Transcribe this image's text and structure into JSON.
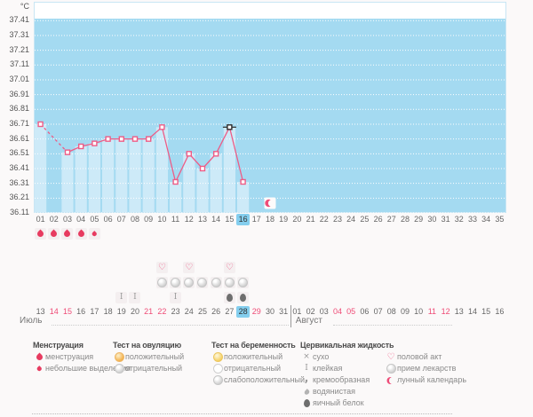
{
  "chart_data": {
    "type": "line",
    "ylabel": "°C",
    "y_ticks": [
      "37.41",
      "37.31",
      "37.21",
      "37.11",
      "37.01",
      "36.91",
      "36.81",
      "36.71",
      "36.61",
      "36.51",
      "36.41",
      "36.31",
      "36.21",
      "36.11"
    ],
    "ylim": [
      36.11,
      37.41
    ],
    "grid": "white-dotted",
    "x_days": [
      "01",
      "02",
      "03",
      "04",
      "05",
      "06",
      "07",
      "08",
      "09",
      "10",
      "11",
      "12",
      "13",
      "14",
      "15",
      "16",
      "17",
      "18",
      "19",
      "20",
      "21",
      "22",
      "23",
      "24",
      "25",
      "26",
      "27",
      "28",
      "29",
      "30",
      "31",
      "32",
      "33",
      "34",
      "35"
    ],
    "series": [
      {
        "name": "basal-temperature",
        "values": [
          36.71,
          null,
          36.52,
          36.56,
          36.58,
          36.61,
          36.61,
          36.61,
          36.61,
          36.69,
          36.32,
          36.51,
          36.41,
          36.51,
          36.69,
          36.32,
          null,
          null,
          null,
          null,
          null,
          null,
          null,
          null,
          null,
          null,
          null,
          null,
          null,
          null,
          null,
          null,
          null,
          null,
          null
        ]
      }
    ],
    "dashed_gap_between_days": [
      1,
      3
    ],
    "special_black_marker_day": 15,
    "selected_cycle_day": "16",
    "moon_icon_day": 18
  },
  "day_rows": {
    "menstruation_heavy_days": [
      1,
      2,
      3,
      4
    ],
    "menstruation_light_days": [
      5
    ],
    "intercourse_days": [
      10,
      12,
      15
    ],
    "ovulation_test_negative_days": [
      10,
      11,
      12,
      13,
      14,
      15,
      16
    ],
    "cervical_sticky_days": [
      7,
      8,
      11
    ],
    "cervical_eggwhite_days": [
      15,
      16
    ]
  },
  "calendar": {
    "months": [
      {
        "label": "Июль",
        "dates": [
          "13",
          "14",
          "15",
          "16",
          "17",
          "18",
          "19",
          "20",
          "21",
          "22",
          "23",
          "24",
          "25",
          "26",
          "27",
          "28",
          "29",
          "30",
          "31"
        ],
        "red_dates": [
          "14",
          "15",
          "21",
          "22",
          "29"
        ],
        "selected_date": "28"
      },
      {
        "label": "Август",
        "dates": [
          "01",
          "02",
          "03",
          "04",
          "05",
          "06",
          "07",
          "08",
          "09",
          "10",
          "11",
          "12",
          "13",
          "14",
          "15",
          "16"
        ],
        "red_dates": [
          "04",
          "05",
          "11",
          "12"
        ],
        "selected_date": ""
      }
    ]
  },
  "legend": {
    "columns": [
      {
        "header": "Менструация",
        "items": [
          {
            "icon": "drop-large",
            "label": "менструация"
          },
          {
            "icon": "drop-small",
            "label": "небольшие выделения"
          }
        ]
      },
      {
        "header": "Тест на овуляцию",
        "items": [
          {
            "icon": "circle-orange",
            "label": "положительный"
          },
          {
            "icon": "circle-gray",
            "label": "отрицательный"
          }
        ]
      },
      {
        "header": "Тест на беременность",
        "items": [
          {
            "icon": "circle-yellow",
            "label": "положительный"
          },
          {
            "icon": "circle-white",
            "label": "отрицательный"
          },
          {
            "icon": "circle-gray-face",
            "label": "слабоположительный"
          }
        ]
      },
      {
        "header": "Цервикальная жидкость",
        "items": [
          {
            "icon": "cross",
            "label": "сухо"
          },
          {
            "icon": "sticky",
            "label": "клейкая"
          },
          {
            "icon": "creamy",
            "label": "кремообразная"
          },
          {
            "icon": "drop-gray",
            "label": "водянистая"
          },
          {
            "icon": "egg",
            "label": "яичный белок"
          }
        ]
      },
      {
        "header": "",
        "items": [
          {
            "icon": "heart",
            "label": "половой акт"
          },
          {
            "icon": "circle-med",
            "label": "прием лекарств"
          },
          {
            "icon": "moon",
            "label": "лунный календарь"
          }
        ]
      }
    ]
  },
  "colors": {
    "plot_bg": "#a4daf1",
    "bar": "#cdeaf8",
    "plot_border": "#c9e6f4",
    "line": "#ee5c86",
    "selected_bg": "#84ceee",
    "red_date": "#ef4b76",
    "drop": "#e73b60",
    "moon": "#ee4d79"
  }
}
